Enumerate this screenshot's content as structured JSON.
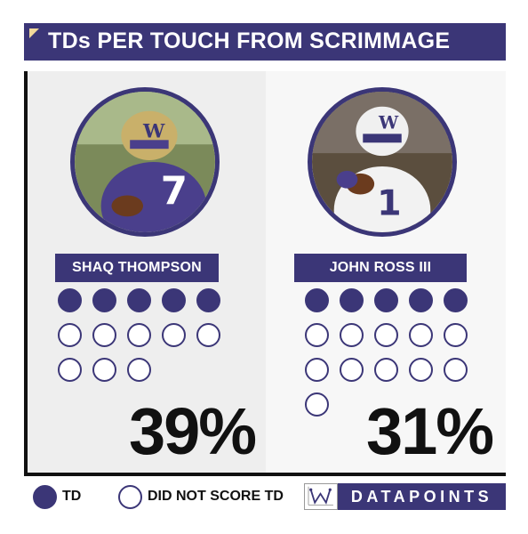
{
  "title": "TDs PER TOUCH FROM SCRIMMAGE",
  "colors": {
    "accent": "#3b3677",
    "corner": "#f2d99a"
  },
  "chart_data": {
    "type": "pictogram",
    "title": "TDs PER TOUCH FROM SCRIMMAGE",
    "series": [
      {
        "name": "SHAQ THOMPSON",
        "td": 5,
        "no_td": 8,
        "percent": 39,
        "percent_label": "39%"
      },
      {
        "name": "JOHN ROSS III",
        "td": 5,
        "no_td": 11,
        "percent": 31,
        "percent_label": "31%"
      }
    ]
  },
  "legend": {
    "td_label": "TD",
    "no_td_label": "DID NOT SCORE TD"
  },
  "brand": {
    "name": "DATAPOINTS",
    "logo_icon": "w-chart-logo-icon"
  },
  "photos": {
    "left_icon": "player-photo-icon",
    "right_icon": "player-photo-icon"
  }
}
